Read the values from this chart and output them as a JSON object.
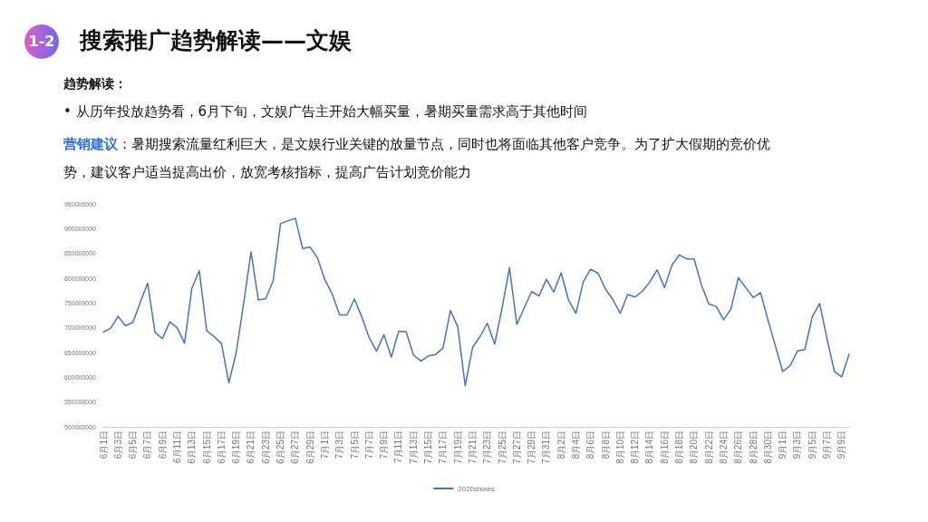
{
  "chart_data": {
    "type": "line",
    "title": "搜索推广趋势解读——文娱",
    "annotations": [
      "1-2",
      "趋势解读：",
      "•  从历年投放趋势看，6月下旬，文娱广告主开始大幅买量，暑期买量需求高于其他时间",
      "营销建议",
      "：暑期搜索流量红利巨大，是文娱行业关键的放量节点，同时也将面临其他客户竞争。为了扩大假期的竞价优势，建议客户适当提高出价，放宽考核指标，提高广告计划竞价能力"
    ],
    "categories": [
      "6月1日",
      null,
      "6月3日",
      null,
      "6月5日",
      null,
      "6月7日",
      null,
      "6月9日",
      null,
      "6月11日",
      null,
      "6月13日",
      null,
      "6月15日",
      null,
      "6月17日",
      null,
      "6月19日",
      null,
      "6月21日",
      null,
      "6月23日",
      null,
      "6月25日",
      null,
      "6月27日",
      null,
      "6月29日",
      null,
      "7月1日",
      null,
      "7月3日",
      null,
      "7月5日",
      null,
      "7月7日",
      null,
      "7月9日",
      null,
      "7月11日",
      null,
      "7月13日",
      null,
      "7月15日",
      null,
      "7月17日",
      null,
      "7月19日",
      null,
      "7月21日",
      null,
      "7月23日",
      null,
      "7月25日",
      null,
      "7月27日",
      null,
      "7月29日",
      null,
      "7月31日",
      null,
      "8月2日",
      null,
      "8月4日",
      null,
      "8月6日",
      null,
      "8月8日",
      null,
      "8月10日",
      null,
      "8月12日",
      null,
      "8月14日",
      null,
      "8月16日",
      null,
      "8月18日",
      null,
      "8月20日",
      null,
      "8月22日",
      null,
      "8月24日",
      null,
      "8月26日",
      null,
      "8月28日",
      null,
      "8月30日",
      null,
      "9月1日",
      null,
      "9月3日",
      null,
      "9月5日",
      null,
      "9月7日",
      null,
      "9月9日",
      null
    ],
    "series": [
      {
        "name": "2020shows",
        "color": "#4472c4",
        "values": [
          691000000,
          699000000,
          723000000,
          704000000,
          711000000,
          751000000,
          790000000,
          691000000,
          678000000,
          712000000,
          700000000,
          669000000,
          780000000,
          815000000,
          694000000,
          682000000,
          668000000,
          589000000,
          650000000,
          749000000,
          853000000,
          756000000,
          759000000,
          795000000,
          910000000,
          916000000,
          921000000,
          860000000,
          863000000,
          841000000,
          797000000,
          768000000,
          726000000,
          726000000,
          758000000,
          722000000,
          680000000,
          653000000,
          686000000,
          641000000,
          693000000,
          692000000,
          645000000,
          633000000,
          643000000,
          646000000,
          659000000,
          735000000,
          702000000,
          583000000,
          660000000,
          682000000,
          709000000,
          667000000,
          740000000,
          821000000,
          707000000,
          740000000,
          773000000,
          764000000,
          798000000,
          772000000,
          811000000,
          756000000,
          729000000,
          793000000,
          818000000,
          810000000,
          778000000,
          757000000,
          729000000,
          767000000,
          762000000,
          774000000,
          792000000,
          817000000,
          781000000,
          826000000,
          847000000,
          839000000,
          839000000,
          786000000,
          748000000,
          743000000,
          716000000,
          738000000,
          801000000,
          781000000,
          761000000,
          771000000,
          716000000,
          664000000,
          612000000,
          623000000,
          653000000,
          656000000,
          722000000,
          749000000,
          678000000,
          612000000,
          601000000,
          647000000
        ]
      }
    ],
    "ylim": [
      500000000,
      950000000
    ],
    "yticks": [
      500000000,
      550000000,
      600000000,
      650000000,
      700000000,
      750000000,
      800000000,
      850000000,
      900000000,
      950000000
    ],
    "grid": false,
    "legend": "bottom",
    "marker": "none",
    "line_style": "solid"
  }
}
